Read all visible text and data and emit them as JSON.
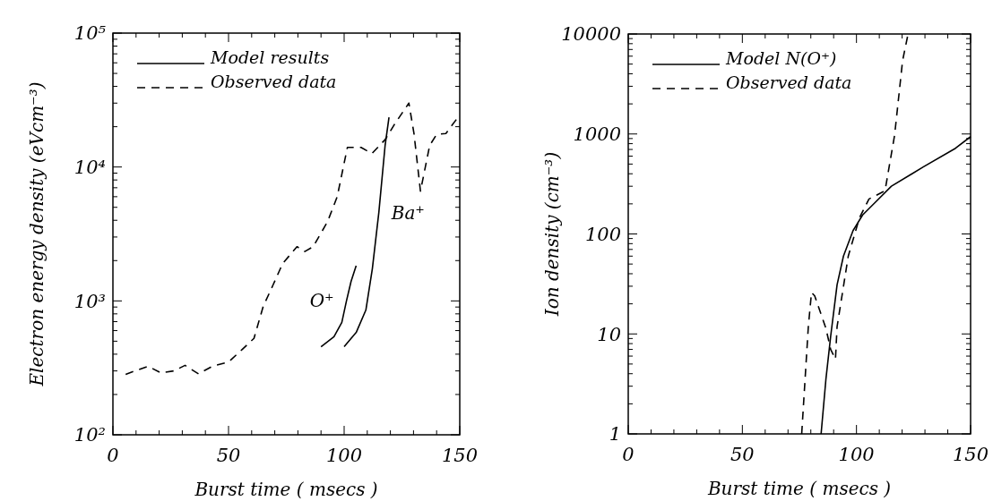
{
  "chart_data": [
    {
      "type": "line",
      "xlabel": "Burst time ( msecs )",
      "ylabel": "Electron energy density (eVcm⁻³)",
      "log": "y",
      "legend": "top left",
      "xlim": [
        0,
        150
      ],
      "xticks": [
        0,
        {
          "value": 10,
          "label": null
        },
        {
          "value": 20,
          "label": null
        },
        {
          "value": 30,
          "label": null
        },
        {
          "value": 40,
          "label": null
        },
        50,
        {
          "value": 60,
          "label": null
        },
        {
          "value": 70,
          "label": null
        },
        {
          "value": 80,
          "label": null
        },
        {
          "value": 90,
          "label": null
        },
        100,
        {
          "value": 110,
          "label": null
        },
        {
          "value": 120,
          "label": null
        },
        {
          "value": 130,
          "label": null
        },
        {
          "value": 140,
          "label": null
        },
        150
      ],
      "ylim": [
        100,
        100000
      ],
      "yticks": [
        {
          "value": 100,
          "label": "10²"
        },
        {
          "value": 200,
          "label": null
        },
        {
          "value": 300,
          "label": null
        },
        {
          "value": 400,
          "label": null
        },
        {
          "value": 500,
          "label": null
        },
        {
          "value": 600,
          "label": null
        },
        {
          "value": 700,
          "label": null
        },
        {
          "value": 800,
          "label": null
        },
        {
          "value": 900,
          "label": null
        },
        {
          "value": 1000,
          "label": "10³"
        },
        {
          "value": 2000,
          "label": null
        },
        {
          "value": 3000,
          "label": null
        },
        {
          "value": 4000,
          "label": null
        },
        {
          "value": 5000,
          "label": null
        },
        {
          "value": 6000,
          "label": null
        },
        {
          "value": 7000,
          "label": null
        },
        {
          "value": 8000,
          "label": null
        },
        {
          "value": 9000,
          "label": null
        },
        {
          "value": 10000,
          "label": "10⁴"
        },
        {
          "value": 20000,
          "label": null
        },
        {
          "value": 30000,
          "label": null
        },
        {
          "value": 40000,
          "label": null
        },
        {
          "value": 50000,
          "label": null
        },
        {
          "value": 60000,
          "label": null
        },
        {
          "value": 70000,
          "label": null
        },
        {
          "value": 80000,
          "label": null
        },
        {
          "value": 90000,
          "label": null
        },
        {
          "value": 100000,
          "label": "10⁵"
        }
      ],
      "series": [
        {
          "name": "Model results",
          "color": "#000000",
          "line_style": "solid",
          "x": [
            90,
            95.6,
            99,
            101,
            103,
            105.2
          ],
          "values": [
            455,
            540,
            690,
            1000,
            1400,
            1830
          ]
        },
        {
          "color": "#000000",
          "line_style": "solid",
          "x": [
            100,
            105.3,
            109.4,
            112.2,
            115,
            117.7,
            119.4
          ],
          "values": [
            455,
            585,
            855,
            1740,
            4570,
            14400,
            23500
          ]
        },
        {
          "name": "Observed data",
          "color": "#000000",
          "line_style": "dashed",
          "x": [
            5.5,
            15.2,
            20.8,
            26.3,
            31.2,
            37,
            43,
            50,
            56,
            61,
            65,
            69.3,
            73.4,
            79.6,
            83,
            86.6,
            92.8,
            97,
            101.4,
            107.3,
            112,
            117.7,
            121.9,
            128,
            130.2,
            133,
            137,
            140,
            144,
            150
          ],
          "values": [
            283,
            325,
            290,
            300,
            330,
            285,
            325,
            350,
            435,
            525,
            910,
            1320,
            1900,
            2540,
            2340,
            2540,
            3900,
            6000,
            14000,
            14000,
            12600,
            16000,
            21000,
            30000,
            17800,
            6600,
            14500,
            17500,
            17800,
            24500
          ]
        }
      ],
      "annotations": [
        "O⁺",
        "Ba⁺"
      ]
    },
    {
      "type": "line",
      "xlabel": "Burst time ( msecs )",
      "ylabel": "Ion density (cm⁻³)",
      "log": "y",
      "legend": "top left",
      "xlim": [
        0,
        150
      ],
      "xticks": [
        0,
        {
          "value": 10,
          "label": null
        },
        {
          "value": 20,
          "label": null
        },
        {
          "value": 30,
          "label": null
        },
        {
          "value": 40,
          "label": null
        },
        50,
        {
          "value": 60,
          "label": null
        },
        {
          "value": 70,
          "label": null
        },
        {
          "value": 80,
          "label": null
        },
        {
          "value": 90,
          "label": null
        },
        100,
        {
          "value": 110,
          "label": null
        },
        {
          "value": 120,
          "label": null
        },
        {
          "value": 130,
          "label": null
        },
        {
          "value": 140,
          "label": null
        },
        150
      ],
      "ylim": [
        1,
        10000
      ],
      "yticks": [
        1,
        {
          "value": 2,
          "label": null
        },
        {
          "value": 3,
          "label": null
        },
        {
          "value": 4,
          "label": null
        },
        {
          "value": 5,
          "label": null
        },
        {
          "value": 6,
          "label": null
        },
        {
          "value": 7,
          "label": null
        },
        {
          "value": 8,
          "label": null
        },
        {
          "value": 9,
          "label": null
        },
        10,
        {
          "value": 20,
          "label": null
        },
        {
          "value": 30,
          "label": null
        },
        {
          "value": 40,
          "label": null
        },
        {
          "value": 50,
          "label": null
        },
        {
          "value": 60,
          "label": null
        },
        {
          "value": 70,
          "label": null
        },
        {
          "value": 80,
          "label": null
        },
        {
          "value": 90,
          "label": null
        },
        100,
        {
          "value": 200,
          "label": null
        },
        {
          "value": 300,
          "label": null
        },
        {
          "value": 400,
          "label": null
        },
        {
          "value": 500,
          "label": null
        },
        {
          "value": 600,
          "label": null
        },
        {
          "value": 700,
          "label": null
        },
        {
          "value": 800,
          "label": null
        },
        {
          "value": 900,
          "label": null
        },
        1000,
        {
          "value": 2000,
          "label": null
        },
        {
          "value": 3000,
          "label": null
        },
        {
          "value": 4000,
          "label": null
        },
        {
          "value": 5000,
          "label": null
        },
        {
          "value": 6000,
          "label": null
        },
        {
          "value": 7000,
          "label": null
        },
        {
          "value": 8000,
          "label": null
        },
        {
          "value": 9000,
          "label": null
        },
        10000
      ],
      "series": [
        {
          "name": "Model N(O⁺)",
          "color": "#000000",
          "line_style": "solid",
          "x": [
            84.5,
            86.6,
            88.7,
            91.5,
            94.3,
            98.5,
            102.7,
            108.3,
            115.3,
            129.4,
            143.4,
            150
          ],
          "values": [
            1,
            3.5,
            9.5,
            31,
            60,
            108,
            155,
            208,
            300,
            470,
            720,
            940
          ]
        },
        {
          "name": "Observed data",
          "color": "#000000",
          "line_style": "dashed",
          "x": [
            76,
            78.9,
            80.3,
            81.7,
            86.6,
            88.7,
            90.8,
            91.5,
            96.4,
            101.3,
            105.5,
            112.5,
            116.7,
            120.2,
            122.6
          ],
          "values": [
            1,
            11.8,
            26,
            24,
            11.4,
            7,
            5.6,
            11.8,
            60,
            145,
            224,
            270,
            970,
            5400,
            10000
          ]
        }
      ]
    }
  ]
}
